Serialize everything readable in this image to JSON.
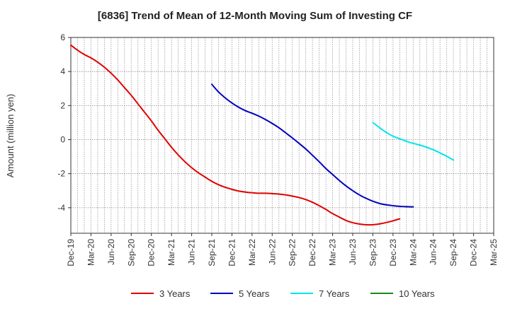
{
  "chart_data": {
    "type": "line",
    "title": "[6836]  Trend of Mean of 12-Month Moving Sum of Investing CF",
    "xlabel": "",
    "ylabel": "Amount (million yen)",
    "ylim": [
      -5.5,
      6
    ],
    "yticks": [
      6,
      4,
      2,
      0,
      -2,
      -4
    ],
    "ytick_labels": [
      "6",
      "4",
      "2",
      "0",
      "-2",
      "-4"
    ],
    "x_start": "Dec-19",
    "x_end": "Mar-25",
    "xtick_labels": [
      "Dec-19",
      "Mar-20",
      "Jun-20",
      "Sep-20",
      "Dec-20",
      "Mar-21",
      "Jun-21",
      "Sep-21",
      "Dec-21",
      "Mar-22",
      "Jun-22",
      "Sep-22",
      "Dec-22",
      "Mar-23",
      "Jun-23",
      "Sep-23",
      "Dec-23",
      "Mar-24",
      "Jun-24",
      "Sep-24",
      "Dec-24",
      "Mar-25"
    ],
    "grid": true,
    "legend_position": "bottom",
    "series": [
      {
        "name": "3 Years",
        "color": "#e00000",
        "start_index": 0,
        "values": [
          5.55,
          5.25,
          5.0,
          4.8,
          4.55,
          4.25,
          3.9,
          3.5,
          3.05,
          2.6,
          2.1,
          1.6,
          1.1,
          0.55,
          0.05,
          -0.45,
          -0.9,
          -1.3,
          -1.65,
          -1.95,
          -2.2,
          -2.45,
          -2.65,
          -2.8,
          -2.92,
          -3.02,
          -3.08,
          -3.12,
          -3.15,
          -3.15,
          -3.17,
          -3.2,
          -3.25,
          -3.32,
          -3.4,
          -3.52,
          -3.68,
          -3.88,
          -4.1,
          -4.35,
          -4.55,
          -4.75,
          -4.88,
          -4.96,
          -5.0,
          -5.0,
          -4.95,
          -4.87,
          -4.77,
          -4.65
        ]
      },
      {
        "name": "5 Years",
        "color": "#0000c0",
        "start_index": 21,
        "values": [
          3.25,
          2.8,
          2.45,
          2.15,
          1.9,
          1.7,
          1.55,
          1.38,
          1.18,
          0.95,
          0.7,
          0.4,
          0.1,
          -0.22,
          -0.55,
          -0.92,
          -1.3,
          -1.7,
          -2.05,
          -2.4,
          -2.72,
          -3.0,
          -3.25,
          -3.45,
          -3.62,
          -3.75,
          -3.83,
          -3.88,
          -3.92,
          -3.94,
          -3.95
        ]
      },
      {
        "name": "7 Years",
        "color": "#00e5ee",
        "start_index": 45,
        "values": [
          1.0,
          0.7,
          0.42,
          0.2,
          0.05,
          -0.1,
          -0.22,
          -0.32,
          -0.45,
          -0.6,
          -0.78,
          -0.98,
          -1.2
        ]
      },
      {
        "name": "10 Years",
        "color": "#1a8a1a",
        "start_index": 0,
        "values": []
      }
    ]
  }
}
